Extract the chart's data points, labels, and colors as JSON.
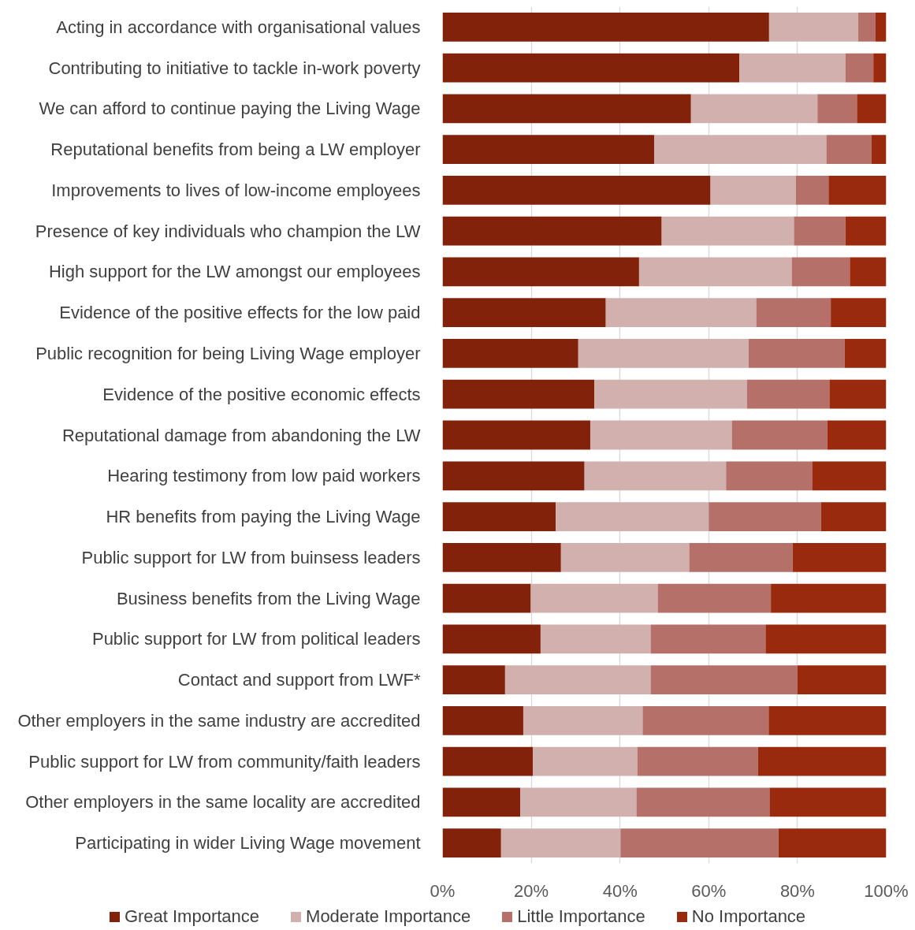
{
  "chart_data": {
    "type": "bar",
    "orientation": "horizontal",
    "stacked": true,
    "categories": [
      "Acting in accordance with organisational values",
      "Contributing to initiative to tackle in-work poverty",
      "We can afford to continue paying the Living Wage",
      "Reputational benefits from being a LW employer",
      "Improvements to lives of low-income employees",
      "Presence of key individuals who champion the LW",
      "High support for the LW amongst our employees",
      "Evidence of the positive effects for the low paid",
      "Public recognition for being Living Wage employer",
      "Evidence of the positive economic effects",
      "Reputational damage from abandoning the LW",
      "Hearing testimony from low paid workers",
      "HR benefits from paying the Living Wage",
      "Public support for LW from buinsess leaders",
      "Business benefits from the Living Wage",
      "Public support for LW from political leaders",
      "Contact and support from LWF*",
      "Other employers in the same industry are accredited",
      "Public support for LW from community/faith leaders",
      "Other employers in the same locality are accredited",
      "Participating in wider Living Wage movement"
    ],
    "series": [
      {
        "name": "Great Importance",
        "color": "#83220a",
        "values": [
          73.6,
          66.9,
          56.0,
          47.7,
          60.4,
          49.4,
          44.3,
          36.8,
          30.6,
          34.2,
          33.3,
          32.0,
          25.5,
          26.7,
          19.9,
          22.1,
          14.1,
          18.2,
          20.4,
          17.5,
          13.2
        ]
      },
      {
        "name": "Moderate Importance",
        "color": "#d1b0ad",
        "values": [
          20.1,
          23.9,
          28.5,
          38.8,
          19.2,
          29.8,
          34.4,
          33.9,
          38.4,
          34.4,
          31.9,
          31.9,
          34.5,
          28.9,
          28.6,
          24.8,
          32.8,
          26.9,
          23.5,
          26.2,
          26.9
        ]
      },
      {
        "name": "Little Importance",
        "color": "#b57169",
        "values": [
          3.9,
          6.3,
          8.9,
          10.2,
          7.4,
          11.6,
          13.1,
          16.8,
          21.6,
          18.6,
          21.5,
          19.4,
          25.3,
          23.3,
          25.5,
          25.9,
          33.1,
          28.4,
          27.2,
          30.0,
          35.6
        ]
      },
      {
        "name": "No Importance",
        "color": "#9a2a0d",
        "values": [
          2.4,
          2.9,
          6.6,
          3.3,
          13.0,
          9.2,
          8.2,
          12.5,
          9.4,
          12.8,
          13.3,
          16.7,
          14.7,
          21.1,
          26.0,
          27.2,
          20.0,
          26.5,
          28.9,
          26.3,
          24.3
        ]
      }
    ],
    "xlim": [
      0,
      100
    ],
    "xticks": [
      {
        "value": 0,
        "label": "0%"
      },
      {
        "value": 20,
        "label": "20%"
      },
      {
        "value": 40,
        "label": "40%"
      },
      {
        "value": 60,
        "label": "60%"
      },
      {
        "value": 80,
        "label": "80%"
      },
      {
        "value": 100,
        "label": "100%"
      }
    ],
    "grid": "x",
    "legend": "bottom"
  }
}
